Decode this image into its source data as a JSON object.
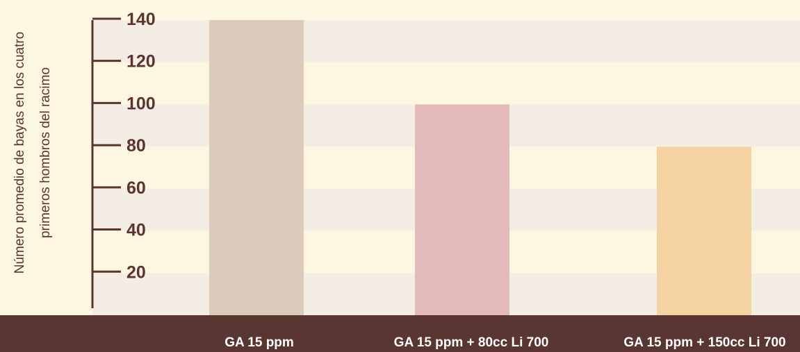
{
  "chart_data": {
    "type": "bar",
    "categories": [
      "GA 15 ppm",
      "GA 15 ppm + 80cc Li 700",
      "GA 15 ppm + 150cc Li 700"
    ],
    "values": [
      140,
      100,
      80
    ],
    "ylabel_lines": [
      "Número promedio de bayas en los cuatro",
      "primeros hombros del racimo"
    ],
    "yticks": [
      20,
      40,
      60,
      80,
      100,
      120,
      140
    ],
    "ylim": [
      0,
      140
    ],
    "grid": "alternating horizontal bands",
    "colors": {
      "bars": [
        "#dccbba",
        "#e4b9ba",
        "#f5d2a2"
      ],
      "band_light": "#fdf6e1",
      "band_dark": "#f4ede3",
      "axis": "#5b3431",
      "footer": "#5a3633",
      "category_text": "#ffffff"
    }
  }
}
